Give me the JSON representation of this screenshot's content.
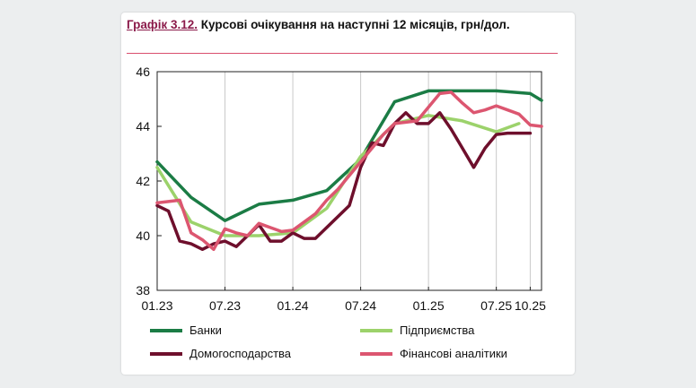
{
  "header": {
    "title_number": "Графік 3.12.",
    "title_text": "Курсові очікування на наступні 12 місяців, грн/дол."
  },
  "colors": {
    "banks": "#1b7c45",
    "enterprises": "#9cd26b",
    "households": "#6e0f2c",
    "analysts": "#dc5670"
  },
  "chart_data": {
    "type": "line",
    "title": "Курсові очікування на наступні 12 місяців, грн/дол.",
    "xlabel": "",
    "ylabel": "",
    "ylim": [
      38,
      46
    ],
    "yticks": [
      38,
      40,
      42,
      44,
      46
    ],
    "x_ticks": [
      "01.23",
      "07.23",
      "01.24",
      "07.24",
      "01.25",
      "07.25",
      "10.25"
    ],
    "x_tick_months": [
      0,
      6,
      12,
      18,
      24,
      30,
      33
    ],
    "xlim_months": [
      0,
      34
    ],
    "grid": "vertical-at-major-ticks",
    "legend_position": "bottom",
    "series": [
      {
        "name": "Банки",
        "color_key": "banks",
        "months": [
          0,
          3,
          6,
          9,
          12,
          15,
          18,
          21,
          24,
          27,
          30,
          33,
          34
        ],
        "values": [
          42.7,
          41.4,
          40.55,
          41.15,
          41.3,
          41.65,
          42.8,
          44.9,
          45.3,
          45.3,
          45.3,
          45.2,
          44.95
        ]
      },
      {
        "name": "Підприємства",
        "color_key": "enterprises",
        "months": [
          0,
          3,
          6,
          9,
          12,
          15,
          18,
          21,
          24,
          27,
          30,
          32
        ],
        "values": [
          42.5,
          40.5,
          40.0,
          40.0,
          40.1,
          41.0,
          42.9,
          44.1,
          44.4,
          44.2,
          43.8,
          44.1
        ]
      },
      {
        "name": "Домогосподарства",
        "color_key": "households",
        "months": [
          0,
          1,
          2,
          3,
          4,
          5,
          6,
          7,
          8,
          9,
          10,
          11,
          12,
          13,
          14,
          15,
          16,
          17,
          18,
          19,
          20,
          21,
          22,
          23,
          24,
          25,
          26,
          27,
          28,
          29,
          30,
          31,
          32,
          33
        ],
        "values": [
          41.1,
          40.9,
          39.8,
          39.7,
          39.5,
          39.7,
          39.8,
          39.6,
          40.0,
          40.4,
          39.8,
          39.8,
          40.1,
          39.9,
          39.9,
          40.3,
          40.7,
          41.1,
          42.5,
          43.4,
          43.3,
          44.1,
          44.5,
          44.1,
          44.1,
          44.5,
          43.9,
          43.2,
          42.5,
          43.2,
          43.7,
          43.75,
          43.75,
          43.75
        ]
      },
      {
        "name": "Фінансові аналітики",
        "color_key": "analysts",
        "months": [
          0,
          1,
          2,
          3,
          4,
          5,
          6,
          7,
          8,
          9,
          10,
          11,
          12,
          13,
          14,
          15,
          16,
          17,
          18,
          19,
          20,
          21,
          22,
          23,
          24,
          25,
          26,
          27,
          28,
          29,
          30,
          31,
          32,
          33,
          34
        ],
        "values": [
          41.2,
          41.25,
          41.3,
          40.1,
          39.85,
          39.5,
          40.25,
          40.1,
          40.0,
          40.45,
          40.3,
          40.15,
          40.2,
          40.5,
          40.8,
          41.3,
          41.7,
          42.2,
          42.7,
          43.2,
          43.7,
          44.1,
          44.15,
          44.2,
          44.7,
          45.2,
          45.25,
          44.85,
          44.5,
          44.6,
          44.75,
          44.6,
          44.45,
          44.05,
          44.0
        ]
      }
    ]
  }
}
